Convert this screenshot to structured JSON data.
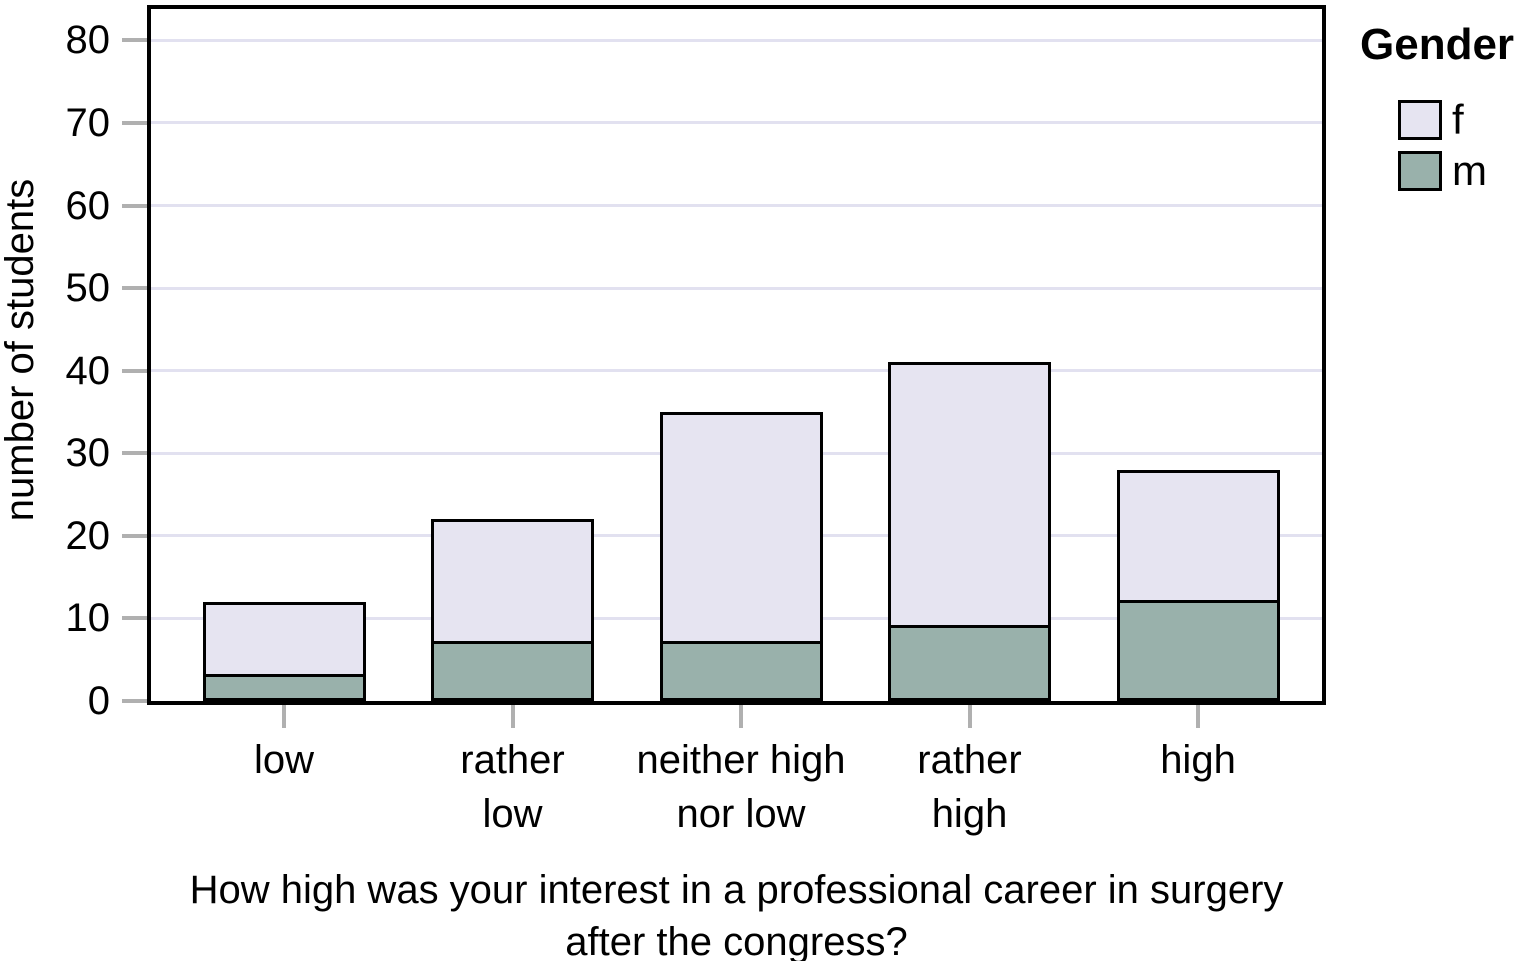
{
  "legend": {
    "title": "Gender",
    "items": [
      {
        "label": "f",
        "color": "#e6e4f1"
      },
      {
        "label": "m",
        "color": "#99b1ab"
      }
    ]
  },
  "chart_data": {
    "type": "bar",
    "stacked": true,
    "categories": [
      "low",
      "rather low",
      "neither high nor low",
      "rather high",
      "high"
    ],
    "categories_lines": [
      [
        "low"
      ],
      [
        "rather",
        "low"
      ],
      [
        "neither high",
        "nor low"
      ],
      [
        "rather",
        "high"
      ],
      [
        "high"
      ]
    ],
    "series": [
      {
        "name": "m",
        "color": "#99b1ab",
        "values": [
          3,
          7,
          7,
          9,
          12
        ]
      },
      {
        "name": "f",
        "color": "#e6e4f1",
        "values": [
          9,
          15,
          28,
          32,
          16
        ]
      }
    ],
    "series_order": "bottom-to-top: m then f",
    "stack_totals": [
      12,
      22,
      35,
      41,
      28
    ],
    "ylabel": "number of students",
    "xlabel": "How high was your interest in a professional career in surgery after the congress?",
    "xlabel_lines": [
      "How high was your interest in a professional career in surgery",
      "after the congress?"
    ],
    "ylim": [
      0,
      84
    ],
    "yticks": [
      0,
      10,
      20,
      30,
      40,
      50,
      60,
      70,
      80
    ],
    "grid": "horizontal gridlines at every y tick",
    "legend_title": "Gender",
    "legend_position": "upper right, outside plot",
    "colors": {
      "gridline": "#e2e1f0",
      "tick": "#b0b0b0",
      "frame": "#000000",
      "f": "#e6e4f1",
      "m": "#99b1ab"
    }
  }
}
